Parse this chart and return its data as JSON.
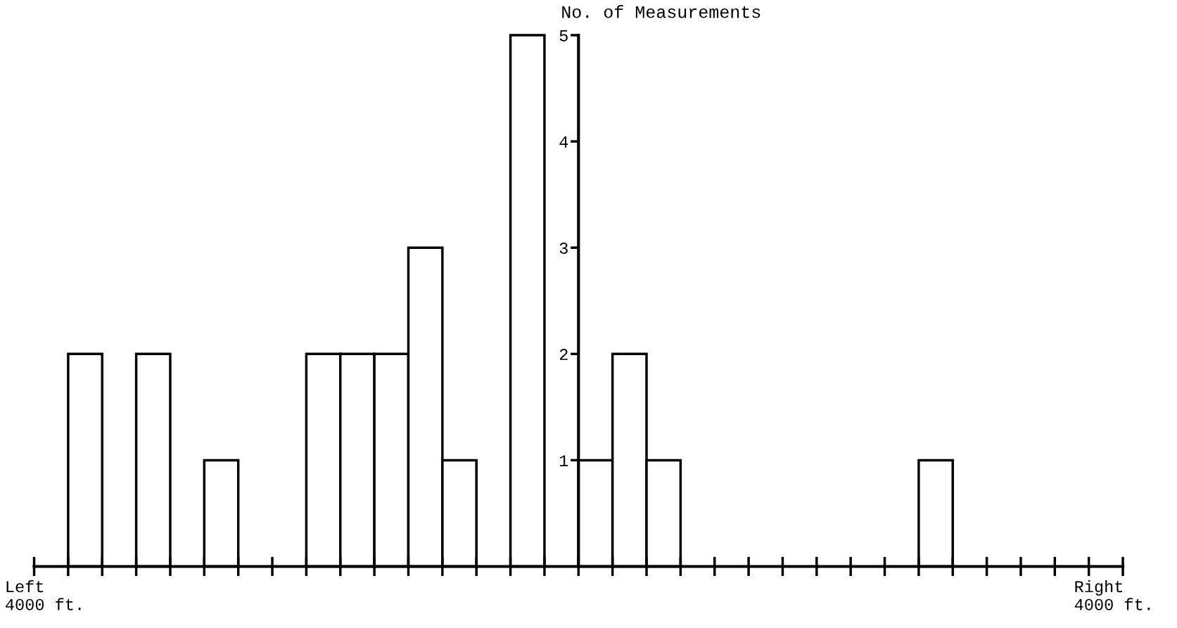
{
  "chart_data": {
    "type": "bar",
    "ylabel": "No. of Measurements",
    "categories": [
      null,
      null,
      null,
      null,
      null,
      null,
      null,
      null,
      null,
      null,
      null,
      null,
      null,
      null,
      null,
      null,
      null,
      null,
      null,
      null,
      null,
      null,
      null,
      null,
      null,
      null,
      null,
      null,
      null,
      null,
      null,
      null
    ],
    "values": [
      0,
      2,
      0,
      2,
      0,
      1,
      0,
      0,
      2,
      2,
      2,
      3,
      1,
      0,
      5,
      0,
      1,
      2,
      1,
      0,
      0,
      0,
      0,
      0,
      0,
      0,
      1,
      0,
      0,
      0,
      0,
      0
    ],
    "color": "#ffffff",
    "ylim": [
      0,
      5
    ],
    "yticks": [
      1,
      2,
      3,
      4,
      5
    ],
    "annotations": [
      "Left\n4000 ft.",
      "Right\n4000 ft."
    ],
    "grid": false,
    "legend": false
  }
}
